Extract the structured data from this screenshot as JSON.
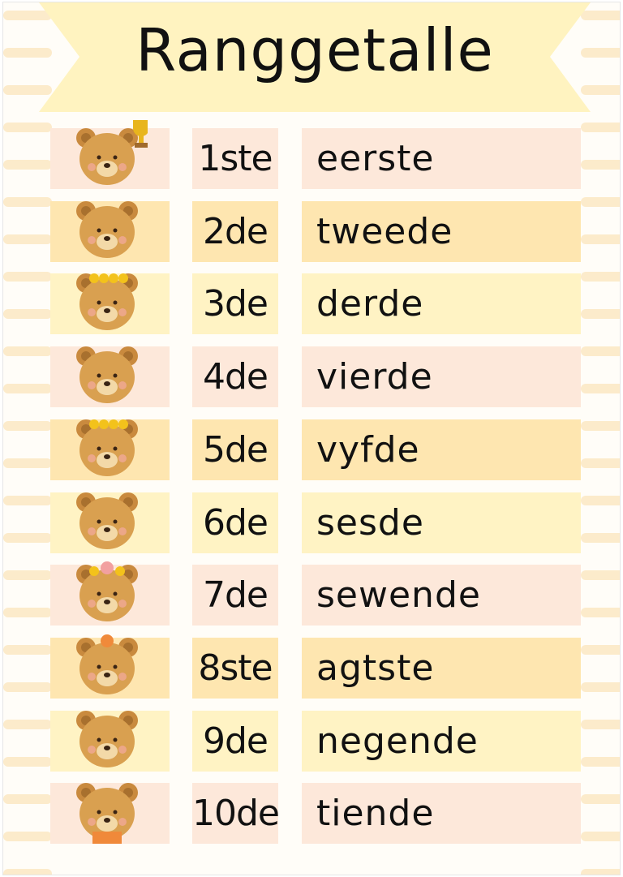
{
  "title": "Ranggetalle",
  "colors": {
    "pink": "#fde8da",
    "orange": "#fee6b0",
    "yellow": "#fff3c4",
    "banner": "#fff3c0",
    "bear": "#d9a050"
  },
  "rows": [
    {
      "number": "1ste",
      "word": "eerste",
      "color": "pink",
      "bear": "bear-with-trophy-icon"
    },
    {
      "number": "2de",
      "word": "tweede",
      "color": "orange",
      "bear": "bear-icon"
    },
    {
      "number": "3de",
      "word": "derde",
      "color": "yellow",
      "bear": "bear-with-sunflower-crown-icon"
    },
    {
      "number": "4de",
      "word": "vierde",
      "color": "pink",
      "bear": "bear-waving-icon"
    },
    {
      "number": "5de",
      "word": "vyfde",
      "color": "orange",
      "bear": "bear-with-sunflower-crown-icon"
    },
    {
      "number": "6de",
      "word": "sesde",
      "color": "yellow",
      "bear": "bear-icon"
    },
    {
      "number": "7de",
      "word": "sewende",
      "color": "pink",
      "bear": "bear-with-rose-crown-icon"
    },
    {
      "number": "8ste",
      "word": "agtste",
      "color": "orange",
      "bear": "bear-with-flower-icon"
    },
    {
      "number": "9de",
      "word": "negende",
      "color": "yellow",
      "bear": "bear-icon"
    },
    {
      "number": "10de",
      "word": "tiende",
      "color": "pink",
      "bear": "bear-reading-book-icon"
    }
  ]
}
